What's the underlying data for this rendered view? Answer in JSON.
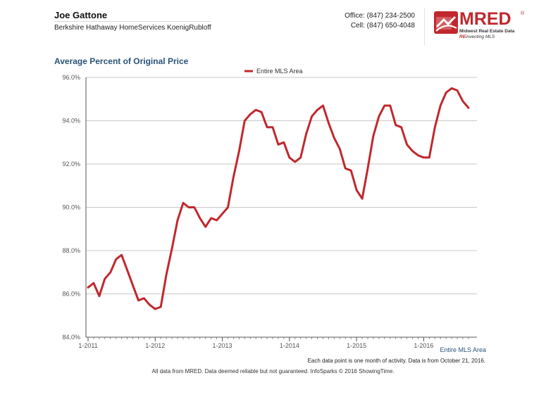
{
  "header": {
    "agent_name": "Joe Gattone",
    "company": "Berkshire Hathaway HomeServices KoenigRubloff",
    "office_phone": "Office: (847) 234-2500",
    "cell_phone": "Cell: (847) 650-4048"
  },
  "logo": {
    "wordmark": "MRED",
    "registered": "®",
    "tagline": "Midwest Real Estate Data",
    "slogan_prefix": "RE",
    "slogan_rest": "inventing MLS",
    "colors": {
      "brand": "#c0282e"
    }
  },
  "chart_data": {
    "type": "line",
    "title": "Average Percent of Original Price",
    "xlabel": "",
    "ylabel": "",
    "x_axis_label": "Entire MLS Area",
    "x_ticks": [
      "1-2011",
      "1-2012",
      "1-2013",
      "1-2014",
      "1-2015",
      "1-2016"
    ],
    "y_ticks": [
      "84.0%",
      "86.0%",
      "88.0%",
      "90.0%",
      "92.0%",
      "94.0%",
      "96.0%"
    ],
    "ylim": [
      84,
      96
    ],
    "grid": true,
    "legend_position": "top-center",
    "series": [
      {
        "name": "Entire MLS Area",
        "color": "#c0282e",
        "x": [
          "2011-01",
          "2011-02",
          "2011-03",
          "2011-04",
          "2011-05",
          "2011-06",
          "2011-07",
          "2011-08",
          "2011-09",
          "2011-10",
          "2011-11",
          "2011-12",
          "2012-01",
          "2012-02",
          "2012-03",
          "2012-04",
          "2012-05",
          "2012-06",
          "2012-07",
          "2012-08",
          "2012-09",
          "2012-10",
          "2012-11",
          "2012-12",
          "2013-01",
          "2013-02",
          "2013-03",
          "2013-04",
          "2013-05",
          "2013-06",
          "2013-07",
          "2013-08",
          "2013-09",
          "2013-10",
          "2013-11",
          "2013-12",
          "2014-01",
          "2014-02",
          "2014-03",
          "2014-04",
          "2014-05",
          "2014-06",
          "2014-07",
          "2014-08",
          "2014-09",
          "2014-10",
          "2014-11",
          "2014-12",
          "2015-01",
          "2015-02",
          "2015-03",
          "2015-04",
          "2015-05",
          "2015-06",
          "2015-07",
          "2015-08",
          "2015-09",
          "2015-10",
          "2015-11",
          "2015-12",
          "2016-01",
          "2016-02",
          "2016-03",
          "2016-04",
          "2016-05",
          "2016-06",
          "2016-07",
          "2016-08",
          "2016-09"
        ],
        "values": [
          86.3,
          86.5,
          85.9,
          86.7,
          87.0,
          87.6,
          87.8,
          87.1,
          86.4,
          85.7,
          85.8,
          85.5,
          85.3,
          85.4,
          86.9,
          88.1,
          89.4,
          90.2,
          90.0,
          90.0,
          89.5,
          89.1,
          89.5,
          89.4,
          89.7,
          90.0,
          91.4,
          92.6,
          94.0,
          94.3,
          94.5,
          94.4,
          93.7,
          93.7,
          92.9,
          93.0,
          92.3,
          92.1,
          92.3,
          93.4,
          94.2,
          94.5,
          94.7,
          93.9,
          93.2,
          92.7,
          91.8,
          91.7,
          90.8,
          90.4,
          91.8,
          93.3,
          94.2,
          94.7,
          94.7,
          93.8,
          93.7,
          92.9,
          92.6,
          92.4,
          92.3,
          92.3,
          93.7,
          94.7,
          95.3,
          95.5,
          95.4,
          94.9,
          94.6
        ]
      }
    ]
  },
  "footer": {
    "note": "Each data point is one month of activity. Data is from October 21, 2016.",
    "disclaimer": "All data from MRED. Data deemed reliable but not guaranteed. InfoSparks © 2016 ShowingTime."
  }
}
